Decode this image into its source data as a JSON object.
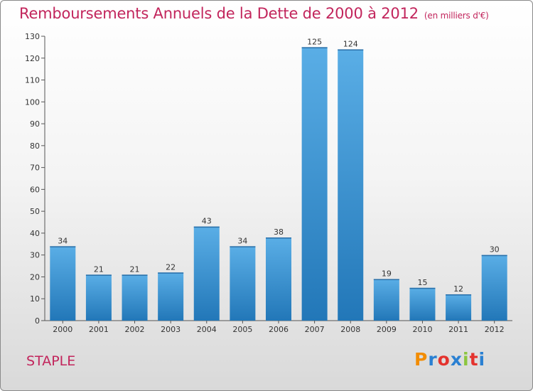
{
  "header": {
    "title": "Remboursements Annuels de la Dette de 2000 à 2012",
    "unit": "(en milliers d'€)"
  },
  "footer": {
    "commune": "STAPLE",
    "logo_text": "Proxiti"
  },
  "colors": {
    "title": "#c2255c",
    "bar_top": "#5aaee6",
    "bar_bottom": "#2277b8",
    "logo_letters": [
      "#f28c00",
      "#2a80d2",
      "#e4332e",
      "#2a80d2",
      "#8cc63f",
      "#e4332e",
      "#2a80d2"
    ]
  },
  "chart_data": {
    "type": "bar",
    "title": "Remboursements Annuels de la Dette de 2000 à 2012",
    "subtitle": "(en milliers d'€)",
    "categories": [
      "2000",
      "2001",
      "2002",
      "2003",
      "2004",
      "2005",
      "2006",
      "2007",
      "2008",
      "2009",
      "2010",
      "2011",
      "2012"
    ],
    "values": [
      34,
      21,
      21,
      22,
      43,
      34,
      38,
      125,
      124,
      19,
      15,
      12,
      30
    ],
    "ylim": [
      0,
      130
    ],
    "yticks": [
      0,
      10,
      20,
      30,
      40,
      50,
      60,
      70,
      80,
      90,
      100,
      110,
      120,
      130
    ],
    "grid": false,
    "legend": "none"
  }
}
